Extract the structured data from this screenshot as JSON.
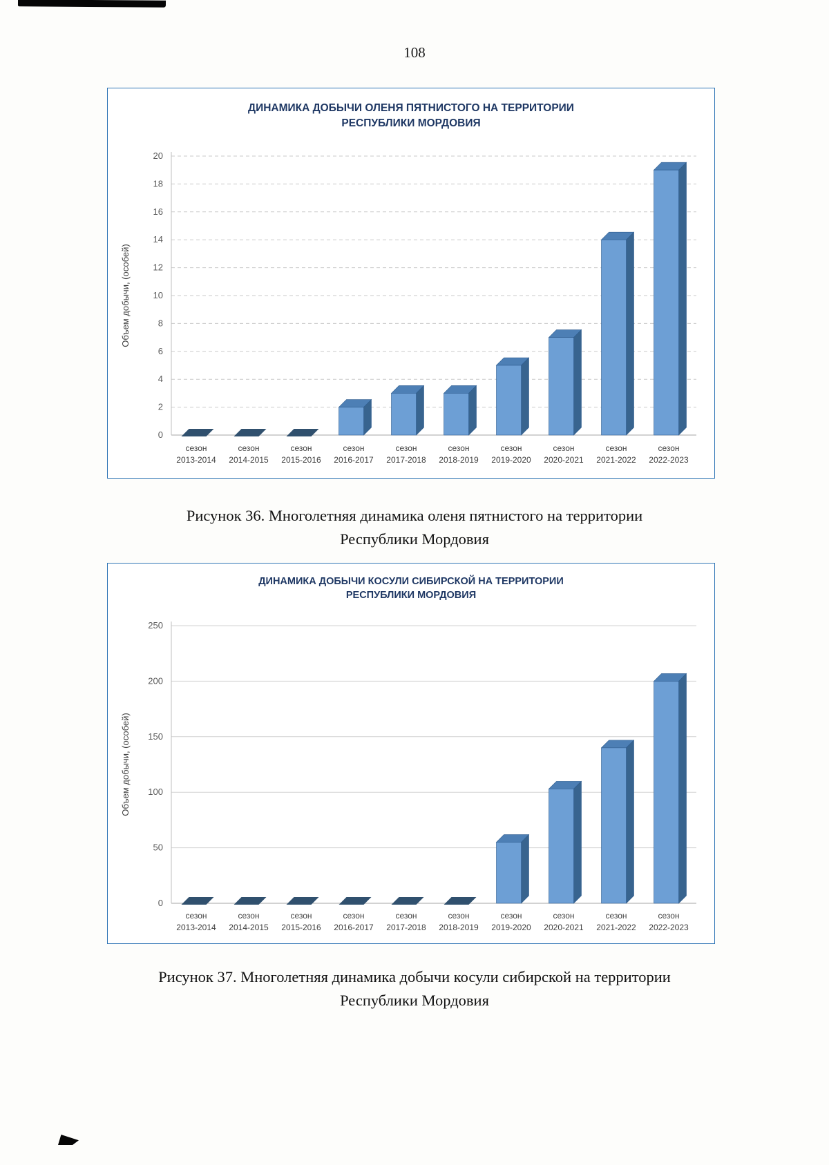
{
  "page": {
    "number": "108"
  },
  "figures": [
    {
      "caption_line1": "Рисунок 36. Многолетняя динамика оленя пятнистого на территории",
      "caption_line2": "Республики Мордовия"
    },
    {
      "caption_line1": "Рисунок 37. Многолетняя динамика добычи косули сибирской на территории",
      "caption_line2": "Республики Мордовия"
    }
  ],
  "chart_data": [
    {
      "type": "bar",
      "style": "3d",
      "title_line1": "ДИНАМИКА ДОБЫЧИ ОЛЕНЯ ПЯТНИСТОГО НА ТЕРРИТОРИИ",
      "title_line2": "РЕСПУБЛИКИ МОРДОВИЯ",
      "ylabel": "Объем добычи, (особей)",
      "category_prefix": "сезон",
      "categories": [
        "2013-2014",
        "2014-2015",
        "2015-2016",
        "2016-2017",
        "2017-2018",
        "2018-2019",
        "2019-2020",
        "2020-2021",
        "2021-2022",
        "2022-2023"
      ],
      "values": [
        0,
        0,
        0,
        2,
        3,
        3,
        5,
        7,
        14,
        19
      ],
      "ylim": [
        0,
        20
      ],
      "ytick_step": 2,
      "grid": "dashed",
      "legend": "none",
      "colors": {
        "bar_front": "#6d9fd5",
        "bar_top": "#4d7fb5",
        "bar_side": "#38648f",
        "bar_outline": "#2f5d8f",
        "zero_mark": "#30506e",
        "gridline": "#c9c9c9",
        "axis": "#a6a6a6",
        "tick_text": "#595959",
        "label_text": "#404040"
      }
    },
    {
      "type": "bar",
      "style": "3d",
      "title_line1": "ДИНАМИКА ДОБЫЧИ КОСУЛИ СИБИРСКОЙ НА ТЕРРИТОРИИ",
      "title_line2": "РЕСПУБЛИКИ МОРДОВИЯ",
      "ylabel": "Объем добычи, (особей)",
      "category_prefix": "сезон",
      "categories": [
        "2013-2014",
        "2014-2015",
        "2015-2016",
        "2016-2017",
        "2017-2018",
        "2018-2019",
        "2019-2020",
        "2020-2021",
        "2021-2022",
        "2022-2023"
      ],
      "values": [
        0,
        0,
        0,
        0,
        0,
        0,
        55,
        103,
        140,
        200
      ],
      "ylim": [
        0,
        250
      ],
      "ytick_step": 50,
      "grid": "solid",
      "legend": "none",
      "colors": {
        "bar_front": "#6d9fd5",
        "bar_top": "#4d7fb5",
        "bar_side": "#38648f",
        "bar_outline": "#2f5d8f",
        "zero_mark": "#30506e",
        "gridline": "#d2d2d2",
        "axis": "#a6a6a6",
        "tick_text": "#595959",
        "label_text": "#404040"
      }
    }
  ]
}
